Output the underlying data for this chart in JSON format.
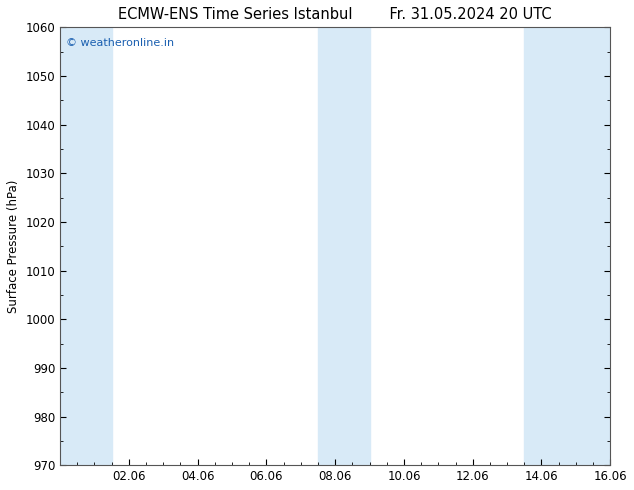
{
  "title_left": "ECMW-ENS Time Series Istanbul",
  "title_right": "Fr. 31.05.2024 20 UTC",
  "ylabel": "Surface Pressure (hPa)",
  "ylim": [
    970,
    1060
  ],
  "yticks": [
    970,
    980,
    990,
    1000,
    1010,
    1020,
    1030,
    1040,
    1050,
    1060
  ],
  "xlim_start": 0,
  "xlim_end": 16,
  "xtick_positions": [
    2,
    4,
    6,
    8,
    10,
    12,
    14,
    16
  ],
  "xtick_labels": [
    "02.06",
    "04.06",
    "06.06",
    "08.06",
    "10.06",
    "12.06",
    "14.06",
    "16.06"
  ],
  "background_color": "#ffffff",
  "plot_bg_color": "#ffffff",
  "shaded_bands": [
    {
      "x_start": 0.0,
      "x_end": 1.5,
      "color": "#d8eaf7"
    },
    {
      "x_start": 7.5,
      "x_end": 9.0,
      "color": "#d8eaf7"
    },
    {
      "x_start": 13.5,
      "x_end": 16.0,
      "color": "#d8eaf7"
    }
  ],
  "watermark_text": "© weatheronline.in",
  "watermark_color": "#1a5fb0",
  "title_fontsize": 10.5,
  "tick_fontsize": 8.5,
  "ylabel_fontsize": 8.5,
  "fig_width": 6.34,
  "fig_height": 4.9,
  "dpi": 100
}
